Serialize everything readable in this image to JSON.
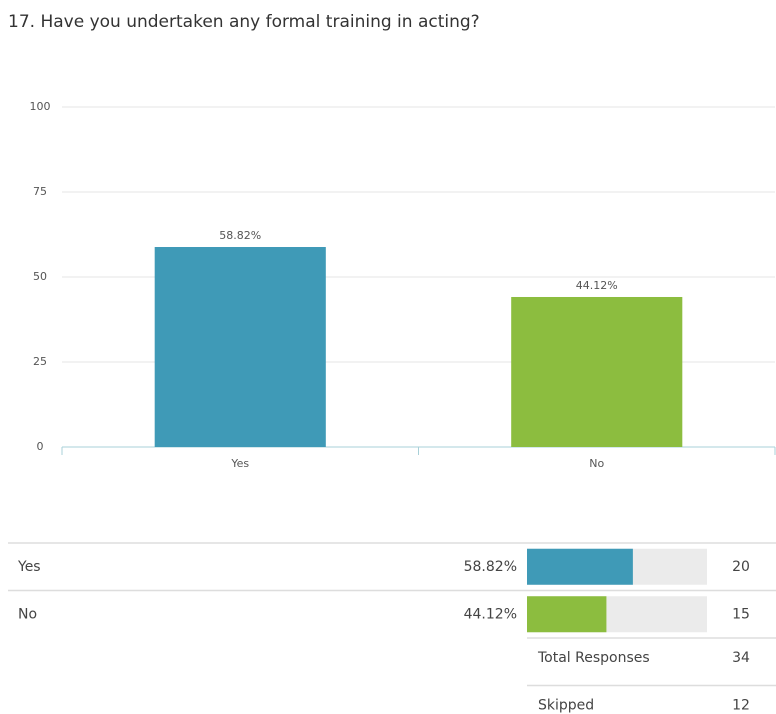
{
  "chart_data": {
    "type": "bar",
    "title": "17. Have you undertaken any formal training in acting?",
    "categories": [
      "Yes",
      "No"
    ],
    "values": [
      58.82,
      44.12
    ],
    "value_labels": [
      "58.82%",
      "44.12%"
    ],
    "colors": [
      "#3f9ab7",
      "#8cbd3f"
    ],
    "ylim": [
      0,
      100
    ],
    "yticks": [
      0,
      25,
      50,
      75,
      100
    ],
    "grid": true
  },
  "table": {
    "counts": [
      20,
      15
    ],
    "total_label": "Total Responses",
    "total": 34,
    "skipped_label": "Skipped",
    "skipped": 12
  }
}
